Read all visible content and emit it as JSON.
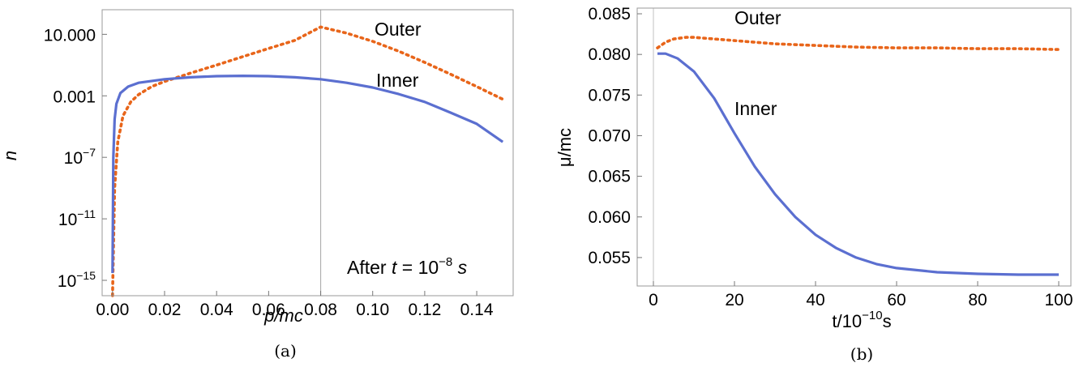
{
  "chart_data": [
    {
      "type": "line",
      "panel_caption": "(a)",
      "xlabel": "p/mc",
      "ylabel": "n",
      "x_ticks": [
        "0.00",
        "0.02",
        "0.04",
        "0.06",
        "0.08",
        "0.10",
        "0.12",
        "0.14"
      ],
      "x_tick_values": [
        0,
        0.02,
        0.04,
        0.06,
        0.08,
        0.1,
        0.12,
        0.14
      ],
      "y_ticks": [
        {
          "value": 10,
          "base": "10.000",
          "exp": ""
        },
        {
          "value": 0.001,
          "base": "0.001",
          "exp": ""
        },
        {
          "value": 1e-07,
          "base": "10",
          "exp": "−7"
        },
        {
          "value": 1e-11,
          "base": "10",
          "exp": "−11"
        },
        {
          "value": 1e-15,
          "base": "10",
          "exp": "−15"
        }
      ],
      "xlim": [
        -0.004,
        0.154
      ],
      "ylim_log10": [
        -16,
        2.6
      ],
      "y_scale": "log",
      "reference_x": 0.08,
      "annotation": {
        "prefix": "After ",
        "var": "t",
        "mid": " = 10",
        "exp": "−8",
        "suffix": " s"
      },
      "series": [
        {
          "name": "Outer",
          "style": "dotted",
          "color": "#E8651A",
          "x": [
            0.0,
            0.0008,
            0.002,
            0.004,
            0.007,
            0.01,
            0.015,
            0.02,
            0.03,
            0.04,
            0.05,
            0.06,
            0.07,
            0.08,
            0.09,
            0.1,
            0.11,
            0.12,
            0.13,
            0.14,
            0.15
          ],
          "y": [
            1e-16,
            1e-09,
            1e-06,
            5e-05,
            0.0004,
            0.0012,
            0.004,
            0.0085,
            0.03,
            0.1,
            0.35,
            1.2,
            4.0,
            30,
            12,
            3.5,
            0.8,
            0.15,
            0.025,
            0.004,
            0.0006
          ]
        },
        {
          "name": "Inner",
          "style": "solid",
          "color": "#5B6FD0",
          "x": [
            0.0,
            0.0003,
            0.0008,
            0.0015,
            0.003,
            0.006,
            0.01,
            0.02,
            0.03,
            0.04,
            0.05,
            0.06,
            0.07,
            0.08,
            0.09,
            0.1,
            0.11,
            0.12,
            0.13,
            0.14,
            0.15
          ],
          "y": [
            3e-15,
            1e-07,
            3e-05,
            0.0003,
            0.0015,
            0.004,
            0.007,
            0.012,
            0.016,
            0.019,
            0.02,
            0.019,
            0.016,
            0.012,
            0.007,
            0.0035,
            0.0013,
            0.0004,
            8e-05,
            1.5e-05,
            1e-06
          ]
        }
      ]
    },
    {
      "type": "line",
      "panel_caption": "(b)",
      "xlabel_base": "t/10",
      "xlabel_exp": "−10",
      "xlabel_suffix": "s",
      "ylabel": "μ/mc",
      "x_ticks": [
        "0",
        "20",
        "40",
        "60",
        "80",
        "100"
      ],
      "x_tick_values": [
        0,
        20,
        40,
        60,
        80,
        100
      ],
      "y_ticks": [
        "0.055",
        "0.060",
        "0.065",
        "0.070",
        "0.075",
        "0.080",
        "0.085"
      ],
      "y_tick_values": [
        0.055,
        0.06,
        0.065,
        0.07,
        0.075,
        0.08,
        0.085
      ],
      "xlim": [
        -4,
        103
      ],
      "ylim": [
        0.0515,
        0.0857
      ],
      "reference_x": 0,
      "series": [
        {
          "name": "Outer",
          "style": "dotted",
          "color": "#E8651A",
          "x": [
            1,
            3,
            5,
            8,
            10,
            15,
            20,
            30,
            40,
            50,
            60,
            70,
            80,
            90,
            100
          ],
          "y": [
            0.0808,
            0.0815,
            0.0819,
            0.0821,
            0.0821,
            0.0819,
            0.0817,
            0.0813,
            0.0811,
            0.0809,
            0.0808,
            0.0808,
            0.0807,
            0.0807,
            0.0806
          ]
        },
        {
          "name": "Inner",
          "style": "solid",
          "color": "#5B6FD0",
          "x": [
            1,
            3,
            6,
            10,
            15,
            20,
            25,
            30,
            35,
            40,
            45,
            50,
            55,
            60,
            70,
            80,
            90,
            100
          ],
          "y": [
            0.0801,
            0.0801,
            0.0795,
            0.0779,
            0.0746,
            0.0703,
            0.0662,
            0.0628,
            0.06,
            0.0578,
            0.0562,
            0.055,
            0.0542,
            0.0537,
            0.0532,
            0.053,
            0.0529,
            0.0529
          ]
        }
      ]
    }
  ]
}
